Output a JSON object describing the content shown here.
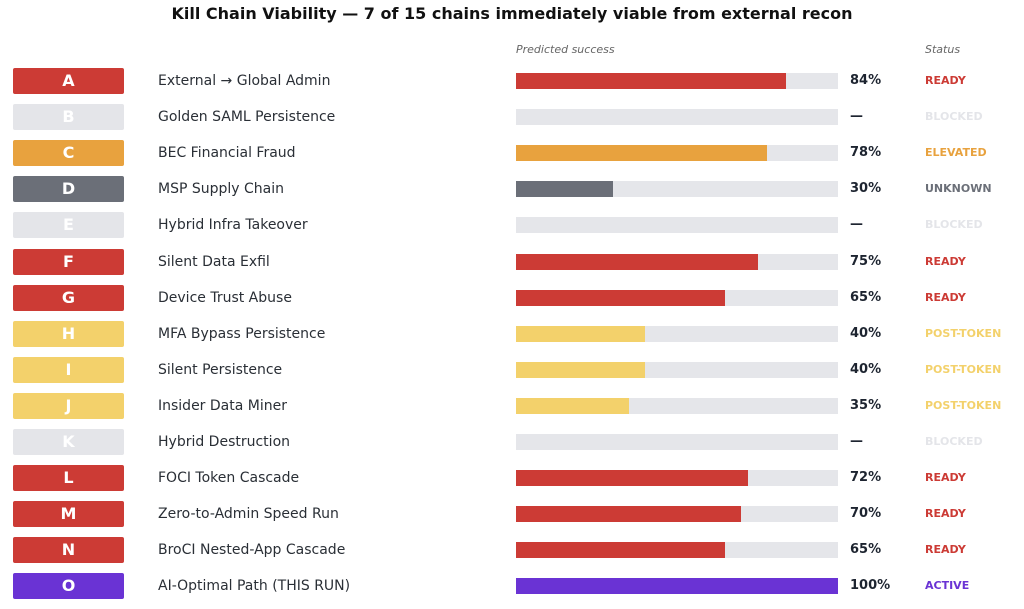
{
  "chart_data": {
    "type": "bar",
    "title": "Kill Chain Viability — 7 of 15 chains immediately viable from external recon",
    "column_headers": {
      "predicted": "Predicted success",
      "status": "Status"
    },
    "xlim": [
      0,
      100
    ],
    "colors": {
      "ready": "#cc3b35",
      "blocked": "#e4e5e9",
      "elevated": "#e8a23e",
      "unknown": "#6b6f78",
      "post_token": "#f3d16b",
      "active": "#6a33d4",
      "track": "#e5e6ea"
    },
    "rows": [
      {
        "letter": "A",
        "name": "External → Global Admin",
        "value": 84,
        "value_label": "84%",
        "status": "READY",
        "color": "#cc3b35"
      },
      {
        "letter": "B",
        "name": "Golden SAML Persistence",
        "value": null,
        "value_label": "—",
        "status": "BLOCKED",
        "color": "#e4e5e9"
      },
      {
        "letter": "C",
        "name": "BEC Financial Fraud",
        "value": 78,
        "value_label": "78%",
        "status": "ELEVATED",
        "color": "#e8a23e"
      },
      {
        "letter": "D",
        "name": "MSP Supply Chain",
        "value": 30,
        "value_label": "30%",
        "status": "UNKNOWN",
        "color": "#6b6f78"
      },
      {
        "letter": "E",
        "name": "Hybrid Infra Takeover",
        "value": null,
        "value_label": "—",
        "status": "BLOCKED",
        "color": "#e4e5e9"
      },
      {
        "letter": "F",
        "name": "Silent Data Exfil",
        "value": 75,
        "value_label": "75%",
        "status": "READY",
        "color": "#cc3b35"
      },
      {
        "letter": "G",
        "name": "Device Trust Abuse",
        "value": 65,
        "value_label": "65%",
        "status": "READY",
        "color": "#cc3b35"
      },
      {
        "letter": "H",
        "name": "MFA Bypass Persistence",
        "value": 40,
        "value_label": "40%",
        "status": "POST-TOKEN",
        "color": "#f3d16b"
      },
      {
        "letter": "I",
        "name": "Silent Persistence",
        "value": 40,
        "value_label": "40%",
        "status": "POST-TOKEN",
        "color": "#f3d16b"
      },
      {
        "letter": "J",
        "name": "Insider Data Miner",
        "value": 35,
        "value_label": "35%",
        "status": "POST-TOKEN",
        "color": "#f3d16b"
      },
      {
        "letter": "K",
        "name": "Hybrid Destruction",
        "value": null,
        "value_label": "—",
        "status": "BLOCKED",
        "color": "#e4e5e9"
      },
      {
        "letter": "L",
        "name": "FOCI Token Cascade",
        "value": 72,
        "value_label": "72%",
        "status": "READY",
        "color": "#cc3b35"
      },
      {
        "letter": "M",
        "name": "Zero-to-Admin Speed Run",
        "value": 70,
        "value_label": "70%",
        "status": "READY",
        "color": "#cc3b35"
      },
      {
        "letter": "N",
        "name": "BroCI Nested-App Cascade",
        "value": 65,
        "value_label": "65%",
        "status": "READY",
        "color": "#cc3b35"
      },
      {
        "letter": "O",
        "name": "AI-Optimal Path (THIS RUN)",
        "value": 100,
        "value_label": "100%",
        "status": "ACTIVE",
        "color": "#6a33d4"
      }
    ]
  }
}
